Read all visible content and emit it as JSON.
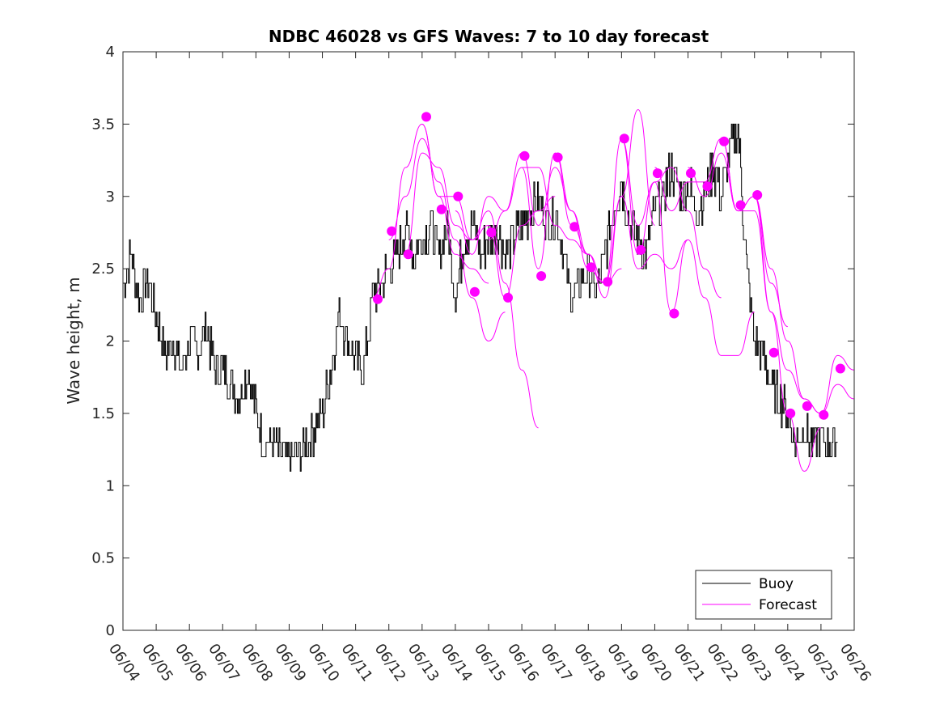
{
  "chart_data": {
    "type": "line",
    "title": "NDBC 46028 vs GFS Waves: 7 to 10 day forecast",
    "xlabel": "",
    "ylabel": "Wave height, m",
    "x_unit": "date (MM/DD)",
    "xlim": [
      "06/04",
      "06/26"
    ],
    "ylim": [
      0,
      4
    ],
    "y_ticks": [
      "0",
      "0.5",
      "1",
      "1.5",
      "2",
      "2.5",
      "3",
      "3.5",
      "4"
    ],
    "x_ticks": [
      "06/04",
      "06/05",
      "06/06",
      "06/07",
      "06/08",
      "06/09",
      "06/10",
      "06/11",
      "06/12",
      "06/13",
      "06/14",
      "06/15",
      "06/16",
      "06/17",
      "06/18",
      "06/19",
      "06/20",
      "06/21",
      "06/22",
      "06/23",
      "06/24",
      "06/25",
      "06/26"
    ],
    "grid": false,
    "legend": {
      "position": "bottom-right",
      "entries": [
        {
          "label": "Buoy",
          "color": "#000000"
        },
        {
          "label": "Forecast",
          "color": "#ff00ff"
        }
      ]
    },
    "series": [
      {
        "name": "Buoy",
        "color": "#000000",
        "x": [
          "06/04 00:00",
          "06/04 06:00",
          "06/04 12:00",
          "06/04 18:00",
          "06/05 00:00",
          "06/05 06:00",
          "06/05 12:00",
          "06/05 18:00",
          "06/06 00:00",
          "06/06 06:00",
          "06/06 12:00",
          "06/06 18:00",
          "06/07 00:00",
          "06/07 06:00",
          "06/07 12:00",
          "06/07 18:00",
          "06/08 00:00",
          "06/08 06:00",
          "06/08 12:00",
          "06/08 18:00",
          "06/09 00:00",
          "06/09 06:00",
          "06/09 12:00",
          "06/09 18:00",
          "06/10 00:00",
          "06/10 06:00",
          "06/10 12:00",
          "06/10 18:00",
          "06/11 00:00",
          "06/11 06:00",
          "06/11 12:00",
          "06/11 18:00",
          "06/12 00:00",
          "06/12 06:00",
          "06/12 12:00",
          "06/12 18:00",
          "06/13 00:00",
          "06/13 06:00",
          "06/13 12:00",
          "06/13 18:00",
          "06/14 00:00",
          "06/14 06:00",
          "06/14 12:00",
          "06/14 18:00",
          "06/15 00:00",
          "06/15 06:00",
          "06/15 12:00",
          "06/15 18:00",
          "06/16 00:00",
          "06/16 06:00",
          "06/16 12:00",
          "06/16 18:00",
          "06/17 00:00",
          "06/17 06:00",
          "06/17 12:00",
          "06/17 18:00",
          "06/18 00:00",
          "06/18 06:00",
          "06/18 12:00",
          "06/18 18:00",
          "06/19 00:00",
          "06/19 06:00",
          "06/19 12:00",
          "06/19 18:00",
          "06/20 00:00",
          "06/20 06:00",
          "06/20 12:00",
          "06/20 18:00",
          "06/21 00:00",
          "06/21 06:00",
          "06/21 12:00",
          "06/21 18:00",
          "06/22 00:00",
          "06/22 06:00",
          "06/22 12:00",
          "06/22 18:00",
          "06/23 00:00",
          "06/23 06:00",
          "06/23 12:00",
          "06/23 18:00",
          "06/24 00:00",
          "06/24 06:00",
          "06/24 12:00",
          "06/24 18:00",
          "06/25 00:00",
          "06/25 06:00",
          "06/25 12:00"
        ],
        "y": [
          2.4,
          2.6,
          2.3,
          2.4,
          2.2,
          1.9,
          2.0,
          1.8,
          2.0,
          1.9,
          2.1,
          1.8,
          1.8,
          1.7,
          1.6,
          1.8,
          1.5,
          1.3,
          1.3,
          1.2,
          1.2,
          1.2,
          1.3,
          1.4,
          1.5,
          1.8,
          2.2,
          2.0,
          1.9,
          1.8,
          2.3,
          2.4,
          2.5,
          2.6,
          2.8,
          2.6,
          2.7,
          2.8,
          2.6,
          2.8,
          2.3,
          2.7,
          2.8,
          2.6,
          2.7,
          2.8,
          2.6,
          2.7,
          2.8,
          2.9,
          3.0,
          2.8,
          2.9,
          2.6,
          2.3,
          2.4,
          2.5,
          2.3,
          2.6,
          2.9,
          3.1,
          2.8,
          2.7,
          2.6,
          2.9,
          3.0,
          3.2,
          3.0,
          3.1,
          2.9,
          3.0,
          3.2,
          3.0,
          3.3,
          3.5,
          2.5,
          2.0,
          1.9,
          1.7,
          1.6,
          1.5,
          1.3,
          1.4,
          1.3,
          1.3,
          1.3,
          1.3
        ]
      },
      {
        "name": "Forecast",
        "color": "#ff00ff",
        "runs": [
          {
            "x": [
              "06/11 12:00",
              "06/12 00:00",
              "06/12 12:00",
              "06/13 00:00",
              "06/13 12:00",
              "06/14 00:00",
              "06/14 12:00",
              "06/15 00:00"
            ],
            "y": [
              2.3,
              2.5,
              3.2,
              3.5,
              3.0,
              2.6,
              2.5,
              2.4
            ]
          },
          {
            "x": [
              "06/12 00:00",
              "06/12 12:00",
              "06/13 00:00",
              "06/13 12:00",
              "06/14 00:00",
              "06/14 12:00",
              "06/15 00:00",
              "06/15 12:00"
            ],
            "y": [
              2.7,
              3.0,
              3.4,
              3.1,
              2.7,
              2.3,
              2.0,
              2.2
            ]
          },
          {
            "x": [
              "06/12 12:00",
              "06/13 00:00",
              "06/13 12:00",
              "06/14 00:00",
              "06/14 12:00",
              "06/15 00:00",
              "06/15 12:00",
              "06/16 00:00",
              "06/16 12:00"
            ],
            "y": [
              2.6,
              3.3,
              3.2,
              2.8,
              2.7,
              2.9,
              2.4,
              1.8,
              1.4
            ]
          },
          {
            "x": [
              "06/13 00:00",
              "06/13 12:00",
              "06/14 00:00",
              "06/14 12:00",
              "06/15 00:00",
              "06/15 12:00",
              "06/16 00:00",
              "06/16 12:00",
              "06/17 00:00"
            ],
            "y": [
              3.5,
              3.0,
              3.0,
              2.7,
              2.8,
              2.3,
              2.8,
              2.9,
              3.0
            ]
          },
          {
            "x": [
              "06/14 00:00",
              "06/14 12:00",
              "06/15 00:00",
              "06/15 12:00",
              "06/16 00:00",
              "06/16 12:00",
              "06/17 00:00",
              "06/17 12:00",
              "06/18 00:00"
            ],
            "y": [
              2.9,
              2.6,
              3.0,
              2.9,
              3.2,
              3.2,
              2.8,
              2.7,
              2.6
            ]
          },
          {
            "x": [
              "06/15 00:00",
              "06/15 12:00",
              "06/16 00:00",
              "06/16 12:00",
              "06/17 00:00",
              "06/17 12:00",
              "06/18 00:00",
              "06/18 12:00",
              "06/19 00:00"
            ],
            "y": [
              2.7,
              2.9,
              3.3,
              2.8,
              3.2,
              2.9,
              2.6,
              2.4,
              2.5
            ]
          },
          {
            "x": [
              "06/16 00:00",
              "06/16 12:00",
              "06/17 00:00",
              "06/17 12:00",
              "06/18 00:00",
              "06/18 12:00",
              "06/19 00:00",
              "06/19 12:00",
              "06/20 00:00"
            ],
            "y": [
              3.2,
              2.5,
              3.3,
              2.9,
              2.5,
              2.4,
              3.0,
              3.6,
              2.8
            ]
          },
          {
            "x": [
              "06/17 00:00",
              "06/17 12:00",
              "06/18 00:00",
              "06/18 12:00",
              "06/19 00:00",
              "06/19 12:00",
              "06/20 00:00",
              "06/20 12:00",
              "06/21 00:00"
            ],
            "y": [
              3.3,
              2.8,
              2.6,
              2.3,
              3.0,
              2.5,
              2.6,
              2.5,
              2.7
            ]
          },
          {
            "x": [
              "06/18 00:00",
              "06/18 12:00",
              "06/19 00:00",
              "06/19 12:00",
              "06/20 00:00",
              "06/20 12:00",
              "06/21 00:00",
              "06/21 12:00",
              "06/22 00:00"
            ],
            "y": [
              2.5,
              2.4,
              3.4,
              2.8,
              3.1,
              3.2,
              2.9,
              2.5,
              2.3
            ]
          },
          {
            "x": [
              "06/19 00:00",
              "06/19 12:00",
              "06/20 00:00",
              "06/20 12:00",
              "06/21 00:00",
              "06/21 12:00",
              "06/22 00:00",
              "06/22 12:00",
              "06/23 00:00"
            ],
            "y": [
              3.4,
              2.6,
              3.1,
              2.2,
              2.7,
              2.3,
              1.9,
              1.9,
              2.2
            ]
          },
          {
            "x": [
              "06/20 00:00",
              "06/20 12:00",
              "06/21 00:00",
              "06/21 12:00",
              "06/22 00:00",
              "06/22 12:00",
              "06/23 00:00",
              "06/23 12:00",
              "06/24 00:00"
            ],
            "y": [
              3.2,
              2.9,
              3.1,
              3.1,
              3.4,
              2.9,
              3.0,
              2.4,
              2.1
            ]
          },
          {
            "x": [
              "06/21 00:00",
              "06/21 12:00",
              "06/22 00:00",
              "06/22 12:00",
              "06/23 00:00",
              "06/23 12:00",
              "06/24 00:00",
              "06/24 12:00",
              "06/25 00:00"
            ],
            "y": [
              3.2,
              3.0,
              3.3,
              2.9,
              2.9,
              2.2,
              1.5,
              1.1,
              1.4
            ]
          },
          {
            "x": [
              "06/22 00:00",
              "06/22 12:00",
              "06/23 00:00",
              "06/23 12:00",
              "06/24 00:00",
              "06/24 12:00",
              "06/25 00:00",
              "06/25 12:00",
              "06/26 00:00"
            ],
            "y": [
              3.4,
              2.9,
              3.0,
              2.2,
              1.8,
              1.6,
              1.5,
              1.7,
              1.6
            ]
          },
          {
            "x": [
              "06/23 00:00",
              "06/23 12:00",
              "06/24 00:00",
              "06/24 12:00",
              "06/25 00:00",
              "06/25 12:00",
              "06/26 00:00"
            ],
            "y": [
              3.0,
              2.5,
              2.0,
              1.6,
              1.5,
              1.9,
              1.8
            ]
          }
        ],
        "markers": [
          {
            "x": "06/11 16:00",
            "y": 2.29
          },
          {
            "x": "06/12 02:00",
            "y": 2.76
          },
          {
            "x": "06/12 14:00",
            "y": 2.6
          },
          {
            "x": "06/13 03:00",
            "y": 3.55
          },
          {
            "x": "06/13 14:00",
            "y": 2.91
          },
          {
            "x": "06/14 02:00",
            "y": 3.0
          },
          {
            "x": "06/14 14:00",
            "y": 2.34
          },
          {
            "x": "06/15 02:00",
            "y": 2.75
          },
          {
            "x": "06/15 14:00",
            "y": 2.3
          },
          {
            "x": "06/16 02:00",
            "y": 3.28
          },
          {
            "x": "06/16 14:00",
            "y": 2.45
          },
          {
            "x": "06/17 02:00",
            "y": 3.27
          },
          {
            "x": "06/17 14:00",
            "y": 2.79
          },
          {
            "x": "06/18 02:00",
            "y": 2.51
          },
          {
            "x": "06/18 14:00",
            "y": 2.41
          },
          {
            "x": "06/19 02:00",
            "y": 3.4
          },
          {
            "x": "06/19 14:00",
            "y": 2.63
          },
          {
            "x": "06/20 02:00",
            "y": 3.16
          },
          {
            "x": "06/20 14:00",
            "y": 2.19
          },
          {
            "x": "06/21 02:00",
            "y": 3.16
          },
          {
            "x": "06/21 14:00",
            "y": 3.07
          },
          {
            "x": "06/22 02:00",
            "y": 3.38
          },
          {
            "x": "06/22 14:00",
            "y": 2.94
          },
          {
            "x": "06/23 02:00",
            "y": 3.01
          },
          {
            "x": "06/23 14:00",
            "y": 1.92
          },
          {
            "x": "06/24 02:00",
            "y": 1.5
          },
          {
            "x": "06/24 14:00",
            "y": 1.55
          },
          {
            "x": "06/25 02:00",
            "y": 1.49
          },
          {
            "x": "06/25 14:00",
            "y": 1.81
          }
        ]
      }
    ]
  }
}
